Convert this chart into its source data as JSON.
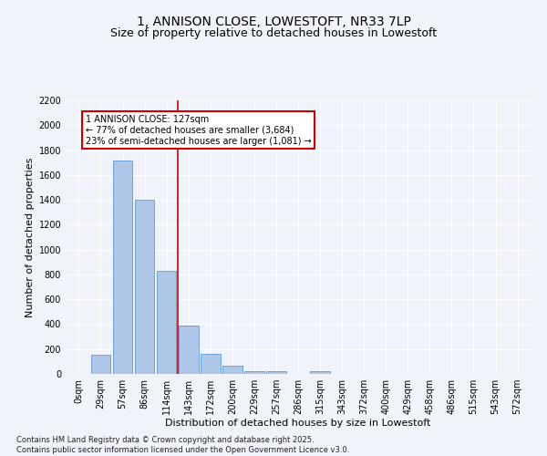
{
  "title_line1": "1, ANNISON CLOSE, LOWESTOFT, NR33 7LP",
  "title_line2": "Size of property relative to detached houses in Lowestoft",
  "xlabel": "Distribution of detached houses by size in Lowestoft",
  "ylabel": "Number of detached properties",
  "bar_labels": [
    "0sqm",
    "29sqm",
    "57sqm",
    "86sqm",
    "114sqm",
    "143sqm",
    "172sqm",
    "200sqm",
    "229sqm",
    "257sqm",
    "286sqm",
    "315sqm",
    "343sqm",
    "372sqm",
    "400sqm",
    "429sqm",
    "458sqm",
    "486sqm",
    "515sqm",
    "543sqm",
    "572sqm"
  ],
  "bar_values": [
    0,
    155,
    1715,
    1400,
    830,
    390,
    160,
    65,
    25,
    20,
    0,
    25,
    0,
    0,
    0,
    0,
    0,
    0,
    0,
    0,
    0
  ],
  "bar_color": "#aec6e8",
  "bar_edge_color": "#5b9bd5",
  "ylim": [
    0,
    2200
  ],
  "yticks": [
    0,
    200,
    400,
    600,
    800,
    1000,
    1200,
    1400,
    1600,
    1800,
    2000,
    2200
  ],
  "vline_x": 4.5,
  "vline_color": "#cc0000",
  "annotation_text": "1 ANNISON CLOSE: 127sqm\n← 77% of detached houses are smaller (3,684)\n23% of semi-detached houses are larger (1,081) →",
  "annotation_box_color": "#ffffff",
  "annotation_box_edgecolor": "#cc0000",
  "background_color": "#f0f4fa",
  "grid_color": "#ffffff",
  "title_fontsize": 10,
  "subtitle_fontsize": 9,
  "axis_label_fontsize": 8,
  "tick_fontsize": 7,
  "annotation_fontsize": 7,
  "footnote_fontsize": 6,
  "footnote": "Contains HM Land Registry data © Crown copyright and database right 2025.\nContains public sector information licensed under the Open Government Licence v3.0."
}
